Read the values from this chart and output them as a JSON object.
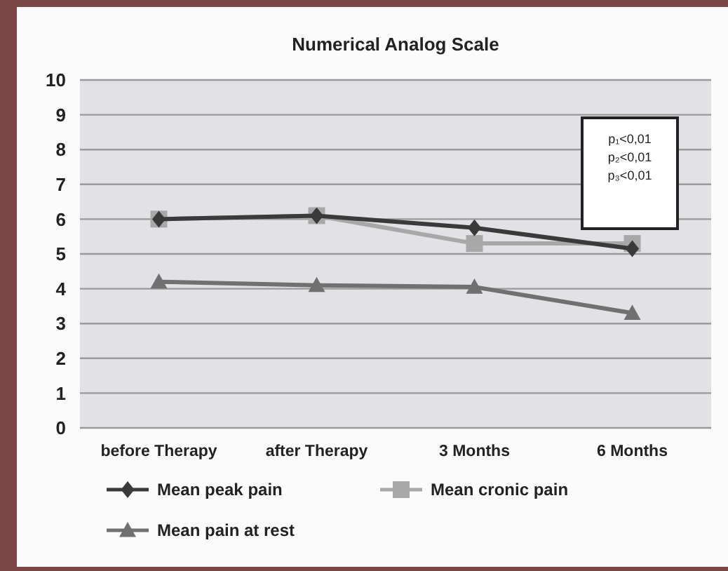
{
  "chart_data": {
    "type": "line",
    "title": "Numerical Analog Scale",
    "categories": [
      "before Therapy",
      "after Therapy",
      "3 Months",
      "6 Months"
    ],
    "series": [
      {
        "name": "Mean peak pain",
        "color": "#3a3a3a",
        "marker": "diamond",
        "values": [
          6.0,
          6.1,
          5.75,
          5.15
        ]
      },
      {
        "name": "Mean cronic pain",
        "color": "#a8a8a8",
        "marker": "square",
        "values": [
          6.0,
          6.1,
          5.3,
          5.3
        ]
      },
      {
        "name": "Mean pain at rest",
        "color": "#707070",
        "marker": "triangle",
        "values": [
          4.2,
          4.1,
          4.05,
          3.3
        ]
      }
    ],
    "ylim": [
      0,
      10
    ],
    "yticks": [
      0,
      1,
      2,
      3,
      4,
      5,
      6,
      7,
      8,
      9,
      10
    ],
    "grid": "y",
    "legend": "bottom",
    "annotations": [
      "p₁<0,01",
      "p₂<0,01",
      "p₃<0,01"
    ]
  }
}
